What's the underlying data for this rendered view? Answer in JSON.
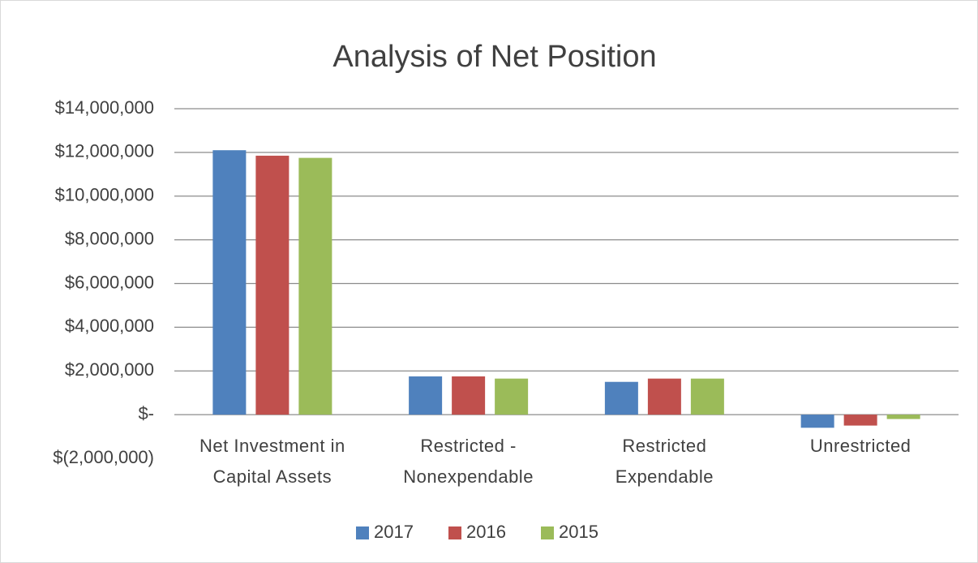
{
  "chart_data": {
    "type": "bar",
    "title": "Analysis of Net Position",
    "categories": [
      [
        "Net Investment in",
        "Capital Assets"
      ],
      [
        "Restricted -",
        "Nonexpendable"
      ],
      [
        "Restricted",
        "Expendable"
      ],
      [
        "Unrestricted"
      ]
    ],
    "series": [
      {
        "name": "2017",
        "color": "#4f81bd",
        "values": [
          12100000,
          1750000,
          1500000,
          -600000
        ]
      },
      {
        "name": "2016",
        "color": "#c0504d",
        "values": [
          11850000,
          1750000,
          1650000,
          -500000
        ]
      },
      {
        "name": "2015",
        "color": "#9bbb59",
        "values": [
          11750000,
          1650000,
          1650000,
          -200000
        ]
      }
    ],
    "ylim": [
      -2000000,
      14000000
    ],
    "yticks": [
      {
        "value": -2000000,
        "label": "$(2,000,000)"
      },
      {
        "value": 0,
        "label": "$-"
      },
      {
        "value": 2000000,
        "label": "$2,000,000"
      },
      {
        "value": 4000000,
        "label": "$4,000,000"
      },
      {
        "value": 6000000,
        "label": "$6,000,000"
      },
      {
        "value": 8000000,
        "label": "$8,000,000"
      },
      {
        "value": 10000000,
        "label": "$10,000,000"
      },
      {
        "value": 12000000,
        "label": "$12,000,000"
      },
      {
        "value": 14000000,
        "label": "$14,000,000"
      }
    ],
    "grid": true,
    "legend": "bottom"
  }
}
